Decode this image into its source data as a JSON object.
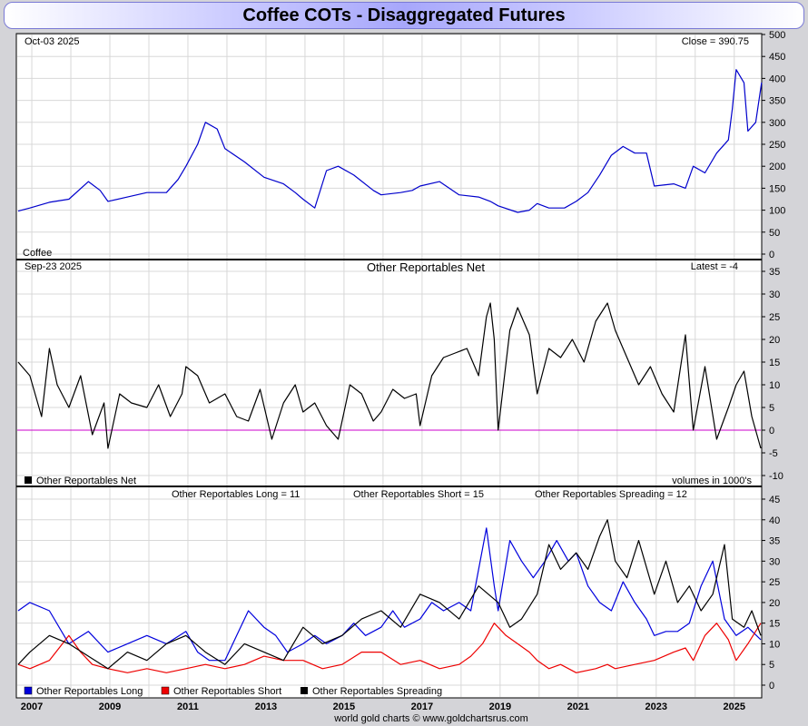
{
  "page": {
    "title": "Coffee COTs - Disaggregated Futures",
    "footer": "world gold charts © www.goldchartsrus.com"
  },
  "colors": {
    "price": "#0000cc",
    "net": "#000000",
    "zero_line": "#cc00cc",
    "long": "#0000dd",
    "short": "#ee0000",
    "spreading": "#000000",
    "grid": "#d8d8d8"
  },
  "chart_data": [
    {
      "type": "line",
      "panel": "price",
      "date_label": "Oct-03  2025",
      "corner_label": "Close = 390.75",
      "name_label": "Coffee",
      "ylim": [
        0,
        500
      ],
      "yticks": [
        0,
        50,
        100,
        150,
        200,
        250,
        300,
        350,
        400,
        450,
        500
      ],
      "series": [
        {
          "name": "Coffee",
          "x": [
            2006.7,
            2007.0,
            2007.5,
            2008.0,
            2008.5,
            2008.8,
            2009.0,
            2009.5,
            2010.0,
            2010.5,
            2010.8,
            2011.0,
            2011.3,
            2011.5,
            2011.8,
            2012.0,
            2012.5,
            2013.0,
            2013.5,
            2013.8,
            2014.0,
            2014.3,
            2014.6,
            2014.9,
            2015.3,
            2015.8,
            2016.0,
            2016.5,
            2016.8,
            2017.0,
            2017.5,
            2018.0,
            2018.5,
            2018.8,
            2019.0,
            2019.5,
            2019.8,
            2020.0,
            2020.3,
            2020.7,
            2021.0,
            2021.3,
            2021.6,
            2021.9,
            2022.2,
            2022.5,
            2022.8,
            2023.0,
            2023.5,
            2023.8,
            2024.0,
            2024.3,
            2024.6,
            2024.9,
            2025.0,
            2025.1,
            2025.3,
            2025.4,
            2025.6,
            2025.75
          ],
          "values": [
            98,
            105,
            118,
            125,
            165,
            145,
            120,
            130,
            140,
            140,
            170,
            200,
            250,
            300,
            285,
            240,
            210,
            175,
            160,
            140,
            125,
            105,
            190,
            200,
            180,
            145,
            135,
            140,
            145,
            155,
            165,
            135,
            130,
            120,
            110,
            95,
            100,
            115,
            105,
            105,
            120,
            140,
            180,
            225,
            245,
            230,
            230,
            155,
            160,
            150,
            200,
            185,
            230,
            260,
            330,
            420,
            390,
            280,
            300,
            390.75
          ]
        }
      ]
    },
    {
      "type": "line",
      "panel": "net",
      "date_label": "Sep-23  2025",
      "title": "Other Reportables Net",
      "corner_label": "Latest = -4",
      "legend": "Other Reportables Net",
      "units_note": "volumes in 1000's",
      "ylim": [
        -10,
        35
      ],
      "yticks": [
        -10,
        -5,
        0,
        5,
        10,
        15,
        20,
        25,
        30,
        35
      ],
      "series": [
        {
          "name": "Other Reportables Net",
          "x": [
            2006.7,
            2007.0,
            2007.3,
            2007.5,
            2007.7,
            2008.0,
            2008.3,
            2008.6,
            2008.9,
            2009.0,
            2009.3,
            2009.6,
            2010.0,
            2010.3,
            2010.6,
            2010.9,
            2011.0,
            2011.3,
            2011.6,
            2012.0,
            2012.3,
            2012.6,
            2012.9,
            2013.2,
            2013.5,
            2013.8,
            2014.0,
            2014.3,
            2014.6,
            2014.9,
            2015.2,
            2015.5,
            2015.8,
            2016.0,
            2016.3,
            2016.6,
            2016.9,
            2017.0,
            2017.3,
            2017.6,
            2017.9,
            2018.2,
            2018.5,
            2018.7,
            2018.8,
            2018.9,
            2019.0,
            2019.3,
            2019.5,
            2019.8,
            2020.0,
            2020.3,
            2020.6,
            2020.9,
            2021.2,
            2021.5,
            2021.8,
            2022.0,
            2022.3,
            2022.6,
            2022.9,
            2023.2,
            2023.5,
            2023.8,
            2024.0,
            2024.3,
            2024.6,
            2024.9,
            2025.1,
            2025.3,
            2025.5,
            2025.73
          ],
          "values": [
            15,
            12,
            3,
            18,
            10,
            5,
            12,
            -1,
            6,
            -4,
            8,
            6,
            5,
            10,
            3,
            8,
            14,
            12,
            6,
            8,
            3,
            2,
            9,
            -2,
            6,
            10,
            4,
            6,
            1,
            -2,
            10,
            8,
            2,
            4,
            9,
            7,
            8,
            1,
            12,
            16,
            17,
            18,
            12,
            25,
            28,
            20,
            0,
            22,
            27,
            21,
            8,
            18,
            16,
            20,
            15,
            24,
            28,
            22,
            16,
            10,
            14,
            8,
            4,
            21,
            0,
            14,
            -2,
            5,
            10,
            13,
            3,
            -4
          ]
        }
      ]
    },
    {
      "type": "line",
      "panel": "positions",
      "ylim": [
        0,
        45
      ],
      "yticks": [
        0,
        5,
        10,
        15,
        20,
        25,
        30,
        35,
        40,
        45
      ],
      "top_labels": [
        "Other Reportables Long = 11",
        "Other Reportables Short = 15",
        "Other Reportables Spreading = 12"
      ],
      "legend": [
        "Other Reportables Long",
        "Other Reportables Short",
        "Other Reportables Spreading"
      ],
      "xticks": [
        "2007",
        "2009",
        "2011",
        "2013",
        "2015",
        "2017",
        "2019",
        "2021",
        "2023",
        "2025"
      ],
      "series": [
        {
          "name": "Other Reportables Long",
          "x": [
            2006.7,
            2007.0,
            2007.5,
            2008.0,
            2008.5,
            2009.0,
            2009.5,
            2010.0,
            2010.5,
            2011.0,
            2011.3,
            2011.6,
            2012.0,
            2012.3,
            2012.6,
            2013.0,
            2013.3,
            2013.6,
            2014.0,
            2014.3,
            2014.6,
            2015.0,
            2015.3,
            2015.6,
            2016.0,
            2016.3,
            2016.6,
            2017.0,
            2017.3,
            2017.6,
            2018.0,
            2018.3,
            2018.5,
            2018.7,
            2018.9,
            2019.0,
            2019.3,
            2019.6,
            2019.9,
            2020.2,
            2020.5,
            2020.8,
            2021.0,
            2021.3,
            2021.6,
            2021.9,
            2022.2,
            2022.5,
            2022.8,
            2023.0,
            2023.3,
            2023.6,
            2023.9,
            2024.2,
            2024.5,
            2024.8,
            2025.1,
            2025.4,
            2025.73
          ],
          "values": [
            18,
            20,
            18,
            10,
            13,
            8,
            10,
            12,
            10,
            13,
            8,
            6,
            6,
            12,
            18,
            14,
            12,
            8,
            10,
            12,
            10,
            12,
            15,
            12,
            14,
            18,
            14,
            16,
            20,
            18,
            20,
            18,
            28,
            38,
            24,
            18,
            35,
            30,
            26,
            30,
            35,
            30,
            32,
            24,
            20,
            18,
            25,
            20,
            16,
            12,
            13,
            13,
            15,
            24,
            30,
            16,
            12,
            14,
            11
          ]
        },
        {
          "name": "Other Reportables Short",
          "x": [
            2006.7,
            2007.0,
            2007.5,
            2008.0,
            2008.3,
            2008.6,
            2009.0,
            2009.5,
            2010.0,
            2010.5,
            2011.0,
            2011.5,
            2012.0,
            2012.5,
            2013.0,
            2013.5,
            2014.0,
            2014.5,
            2015.0,
            2015.5,
            2016.0,
            2016.5,
            2017.0,
            2017.5,
            2018.0,
            2018.3,
            2018.6,
            2018.9,
            2019.2,
            2019.5,
            2019.8,
            2020.0,
            2020.3,
            2020.6,
            2021.0,
            2021.5,
            2021.8,
            2022.0,
            2022.5,
            2023.0,
            2023.5,
            2023.8,
            2024.0,
            2024.3,
            2024.6,
            2024.9,
            2025.1,
            2025.4,
            2025.73
          ],
          "values": [
            5,
            4,
            6,
            12,
            8,
            5,
            4,
            3,
            4,
            3,
            4,
            5,
            4,
            5,
            7,
            6,
            6,
            4,
            5,
            8,
            8,
            5,
            6,
            4,
            5,
            7,
            10,
            15,
            12,
            10,
            8,
            6,
            4,
            5,
            3,
            4,
            5,
            4,
            5,
            6,
            8,
            9,
            6,
            12,
            15,
            11,
            6,
            10,
            15
          ]
        },
        {
          "name": "Other Reportables Spreading",
          "x": [
            2006.7,
            2007.0,
            2007.5,
            2008.0,
            2008.5,
            2009.0,
            2009.5,
            2010.0,
            2010.5,
            2011.0,
            2011.5,
            2012.0,
            2012.5,
            2013.0,
            2013.5,
            2014.0,
            2014.5,
            2015.0,
            2015.5,
            2016.0,
            2016.5,
            2017.0,
            2017.5,
            2018.0,
            2018.5,
            2019.0,
            2019.3,
            2019.6,
            2020.0,
            2020.3,
            2020.6,
            2021.0,
            2021.3,
            2021.6,
            2021.8,
            2022.0,
            2022.3,
            2022.6,
            2023.0,
            2023.3,
            2023.6,
            2023.9,
            2024.2,
            2024.5,
            2024.8,
            2025.0,
            2025.3,
            2025.5,
            2025.73
          ],
          "values": [
            5,
            8,
            12,
            10,
            7,
            4,
            8,
            6,
            10,
            12,
            8,
            5,
            10,
            8,
            6,
            14,
            10,
            12,
            16,
            18,
            14,
            22,
            20,
            16,
            24,
            20,
            14,
            16,
            22,
            34,
            28,
            32,
            28,
            36,
            40,
            30,
            26,
            35,
            22,
            30,
            20,
            24,
            18,
            22,
            34,
            16,
            14,
            18,
            12
          ]
        }
      ]
    }
  ]
}
